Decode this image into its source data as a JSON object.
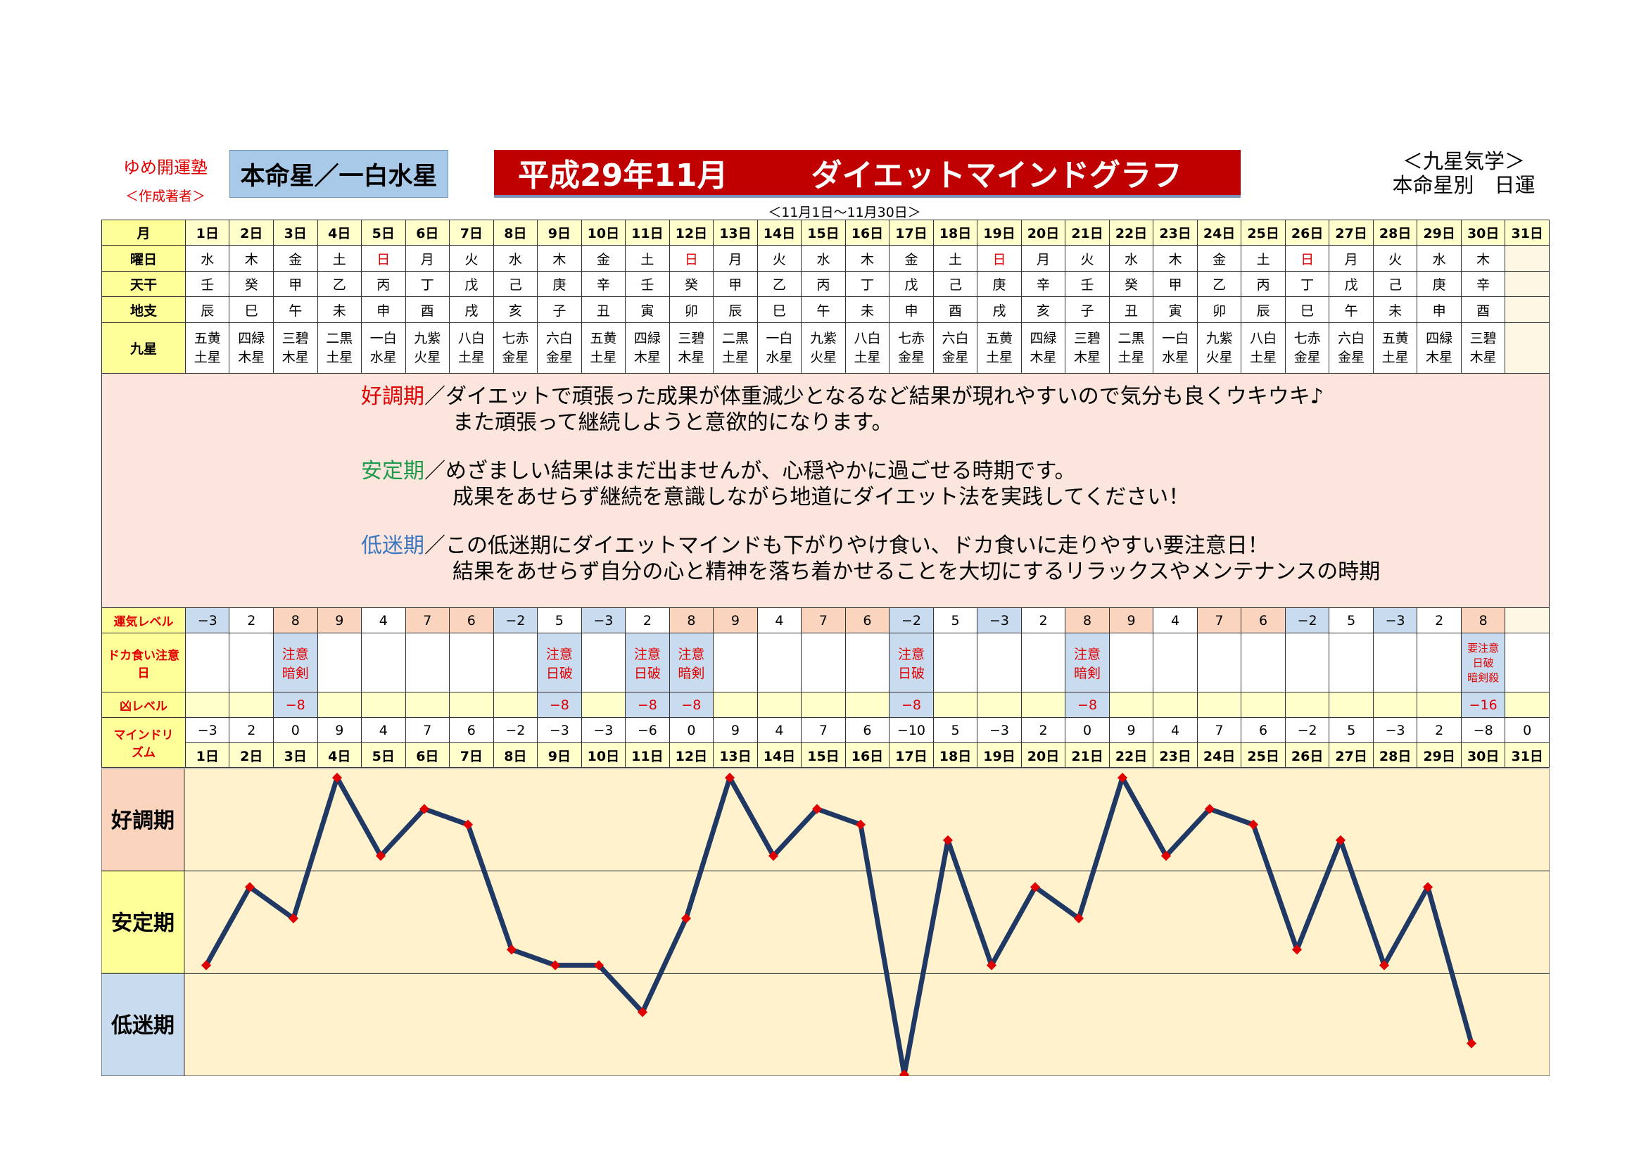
{
  "header": {
    "juku": "ゆめ開運塾",
    "author": "＜作成著者＞",
    "honmei": "本命星／一白水星",
    "title_era": "平成29年11月",
    "title_main": "ダイエットマインドグラフ",
    "period": "＜11月1日〜11月30日＞",
    "school_line1": "＜九星気学＞",
    "school_line2": "本命星別　日運"
  },
  "labels": {
    "month": "月",
    "weekday": "曜日",
    "tenkan": "天干",
    "chishi": "地支",
    "kyusei": "九星",
    "unki": "運気レベル",
    "doka": "ドカ食い注意日",
    "kyo": "凶レベル",
    "mind": "マインドリズム",
    "good": "好調期",
    "stable": "安定期",
    "low": "低迷期"
  },
  "description": {
    "good_tag": "好調期",
    "good_l1": "／ダイエットで頑張った成果が体重減少となるなど結果が現れやすいので気分も良くウキウキ♪",
    "good_l2": "また頑張って継続しようと意欲的になります。",
    "stable_tag": "安定期",
    "stable_l1": "／めざましい結果はまだ出ませんが、心穏やかに過ごせる時期です。",
    "stable_l2": "成果をあせらず継続を意識しながら地道にダイエット法を実践してください！",
    "low_tag": "低迷期",
    "low_l1": "／この低迷期にダイエットマインドも下がりやけ食い、ドカ食いに走りやすい要注意日！",
    "low_l2": "結果をあせらず自分の心と精神を落ち着かせることを大切にするリラックスやメンテナンスの時期"
  },
  "days": [
    "1日",
    "2日",
    "3日",
    "4日",
    "5日",
    "6日",
    "7日",
    "8日",
    "9日",
    "10日",
    "11日",
    "12日",
    "13日",
    "14日",
    "15日",
    "16日",
    "17日",
    "18日",
    "19日",
    "20日",
    "21日",
    "22日",
    "23日",
    "24日",
    "25日",
    "26日",
    "27日",
    "28日",
    "29日",
    "30日",
    "31日"
  ],
  "weekdays": [
    "水",
    "木",
    "金",
    "土",
    "日",
    "月",
    "火",
    "水",
    "木",
    "金",
    "土",
    "日",
    "月",
    "火",
    "水",
    "木",
    "金",
    "土",
    "日",
    "月",
    "火",
    "水",
    "木",
    "金",
    "土",
    "日",
    "月",
    "火",
    "水",
    "木",
    ""
  ],
  "tenkan": [
    "壬",
    "癸",
    "甲",
    "乙",
    "丙",
    "丁",
    "戊",
    "己",
    "庚",
    "辛",
    "壬",
    "癸",
    "甲",
    "乙",
    "丙",
    "丁",
    "戊",
    "己",
    "庚",
    "辛",
    "壬",
    "癸",
    "甲",
    "乙",
    "丙",
    "丁",
    "戊",
    "己",
    "庚",
    "辛",
    ""
  ],
  "chishi": [
    "辰",
    "巳",
    "午",
    "未",
    "申",
    "酉",
    "戌",
    "亥",
    "子",
    "丑",
    "寅",
    "卯",
    "辰",
    "巳",
    "午",
    "未",
    "申",
    "酉",
    "戌",
    "亥",
    "子",
    "丑",
    "寅",
    "卯",
    "辰",
    "巳",
    "午",
    "未",
    "申",
    "酉",
    ""
  ],
  "kyusei_top": [
    "五黄",
    "四緑",
    "三碧",
    "二黒",
    "一白",
    "九紫",
    "八白",
    "七赤",
    "六白",
    "五黄",
    "四緑",
    "三碧",
    "二黒",
    "一白",
    "九紫",
    "八白",
    "七赤",
    "六白",
    "五黄",
    "四緑",
    "三碧",
    "二黒",
    "一白",
    "九紫",
    "八白",
    "七赤",
    "六白",
    "五黄",
    "四緑",
    "三碧",
    ""
  ],
  "kyusei_bottom": [
    "土星",
    "木星",
    "木星",
    "土星",
    "水星",
    "火星",
    "土星",
    "金星",
    "金星",
    "土星",
    "木星",
    "木星",
    "土星",
    "水星",
    "火星",
    "土星",
    "金星",
    "金星",
    "土星",
    "木星",
    "木星",
    "土星",
    "水星",
    "火星",
    "土星",
    "金星",
    "金星",
    "土星",
    "木星",
    "木星",
    ""
  ],
  "unki": [
    "−3",
    "2",
    "8",
    "9",
    "4",
    "7",
    "6",
    "−2",
    "5",
    "−3",
    "2",
    "8",
    "9",
    "4",
    "7",
    "6",
    "−2",
    "5",
    "−3",
    "2",
    "8",
    "9",
    "4",
    "7",
    "6",
    "−2",
    "5",
    "−3",
    "2",
    "8",
    ""
  ],
  "doka_line1": [
    "",
    "",
    "注意",
    "",
    "",
    "",
    "",
    "",
    "注意",
    "",
    "注意",
    "注意",
    "",
    "",
    "",
    "",
    "注意",
    "",
    "",
    "",
    "注意",
    "",
    "",
    "",
    "",
    "",
    "",
    "",
    "",
    "要注意",
    ""
  ],
  "doka_line2": [
    "",
    "",
    "暗剣",
    "",
    "",
    "",
    "",
    "",
    "日破",
    "",
    "日破",
    "暗剣",
    "",
    "",
    "",
    "",
    "日破",
    "",
    "",
    "",
    "暗剣",
    "",
    "",
    "",
    "",
    "",
    "",
    "",
    "",
    "日破",
    ""
  ],
  "doka_line3": [
    "",
    "",
    "",
    "",
    "",
    "",
    "",
    "",
    "",
    "",
    "",
    "",
    "",
    "",
    "",
    "",
    "",
    "",
    "",
    "",
    "",
    "",
    "",
    "",
    "",
    "",
    "",
    "",
    "",
    "暗剣殺",
    ""
  ],
  "kyo": [
    "",
    "",
    "−8",
    "",
    "",
    "",
    "",
    "",
    "−8",
    "",
    "−8",
    "−8",
    "",
    "",
    "",
    "",
    "−8",
    "",
    "",
    "",
    "−8",
    "",
    "",
    "",
    "",
    "",
    "",
    "",
    "",
    "−16",
    ""
  ],
  "mind": [
    "−3",
    "2",
    "0",
    "9",
    "4",
    "7",
    "6",
    "−2",
    "−3",
    "−3",
    "−6",
    "0",
    "9",
    "4",
    "7",
    "6",
    "−10",
    "5",
    "−3",
    "2",
    "0",
    "9",
    "4",
    "7",
    "6",
    "−2",
    "5",
    "−3",
    "2",
    "−8",
    "0"
  ],
  "colors": {
    "good": "#fbd4bd",
    "low": "#c9dcef",
    "line": "#1f3864",
    "marker": "#e00000",
    "title_bg": "#c00000",
    "honmei_bg": "#a9c9e9",
    "chart_bg": "#fff2cc"
  },
  "chart_data": {
    "type": "line",
    "categories": [
      "1日",
      "2日",
      "3日",
      "4日",
      "5日",
      "6日",
      "7日",
      "8日",
      "9日",
      "10日",
      "11日",
      "12日",
      "13日",
      "14日",
      "15日",
      "16日",
      "17日",
      "18日",
      "19日",
      "20日",
      "21日",
      "22日",
      "23日",
      "24日",
      "25日",
      "26日",
      "27日",
      "28日",
      "29日",
      "30日"
    ],
    "values": [
      -3,
      2,
      0,
      9,
      4,
      7,
      6,
      -2,
      -3,
      -3,
      -6,
      0,
      9,
      4,
      7,
      6,
      -10,
      5,
      -3,
      2,
      0,
      9,
      4,
      7,
      6,
      -2,
      5,
      -3,
      2,
      -8
    ],
    "ylim": [
      -10,
      9.5
    ],
    "bands": [
      "好調期",
      "安定期",
      "低迷期"
    ]
  }
}
